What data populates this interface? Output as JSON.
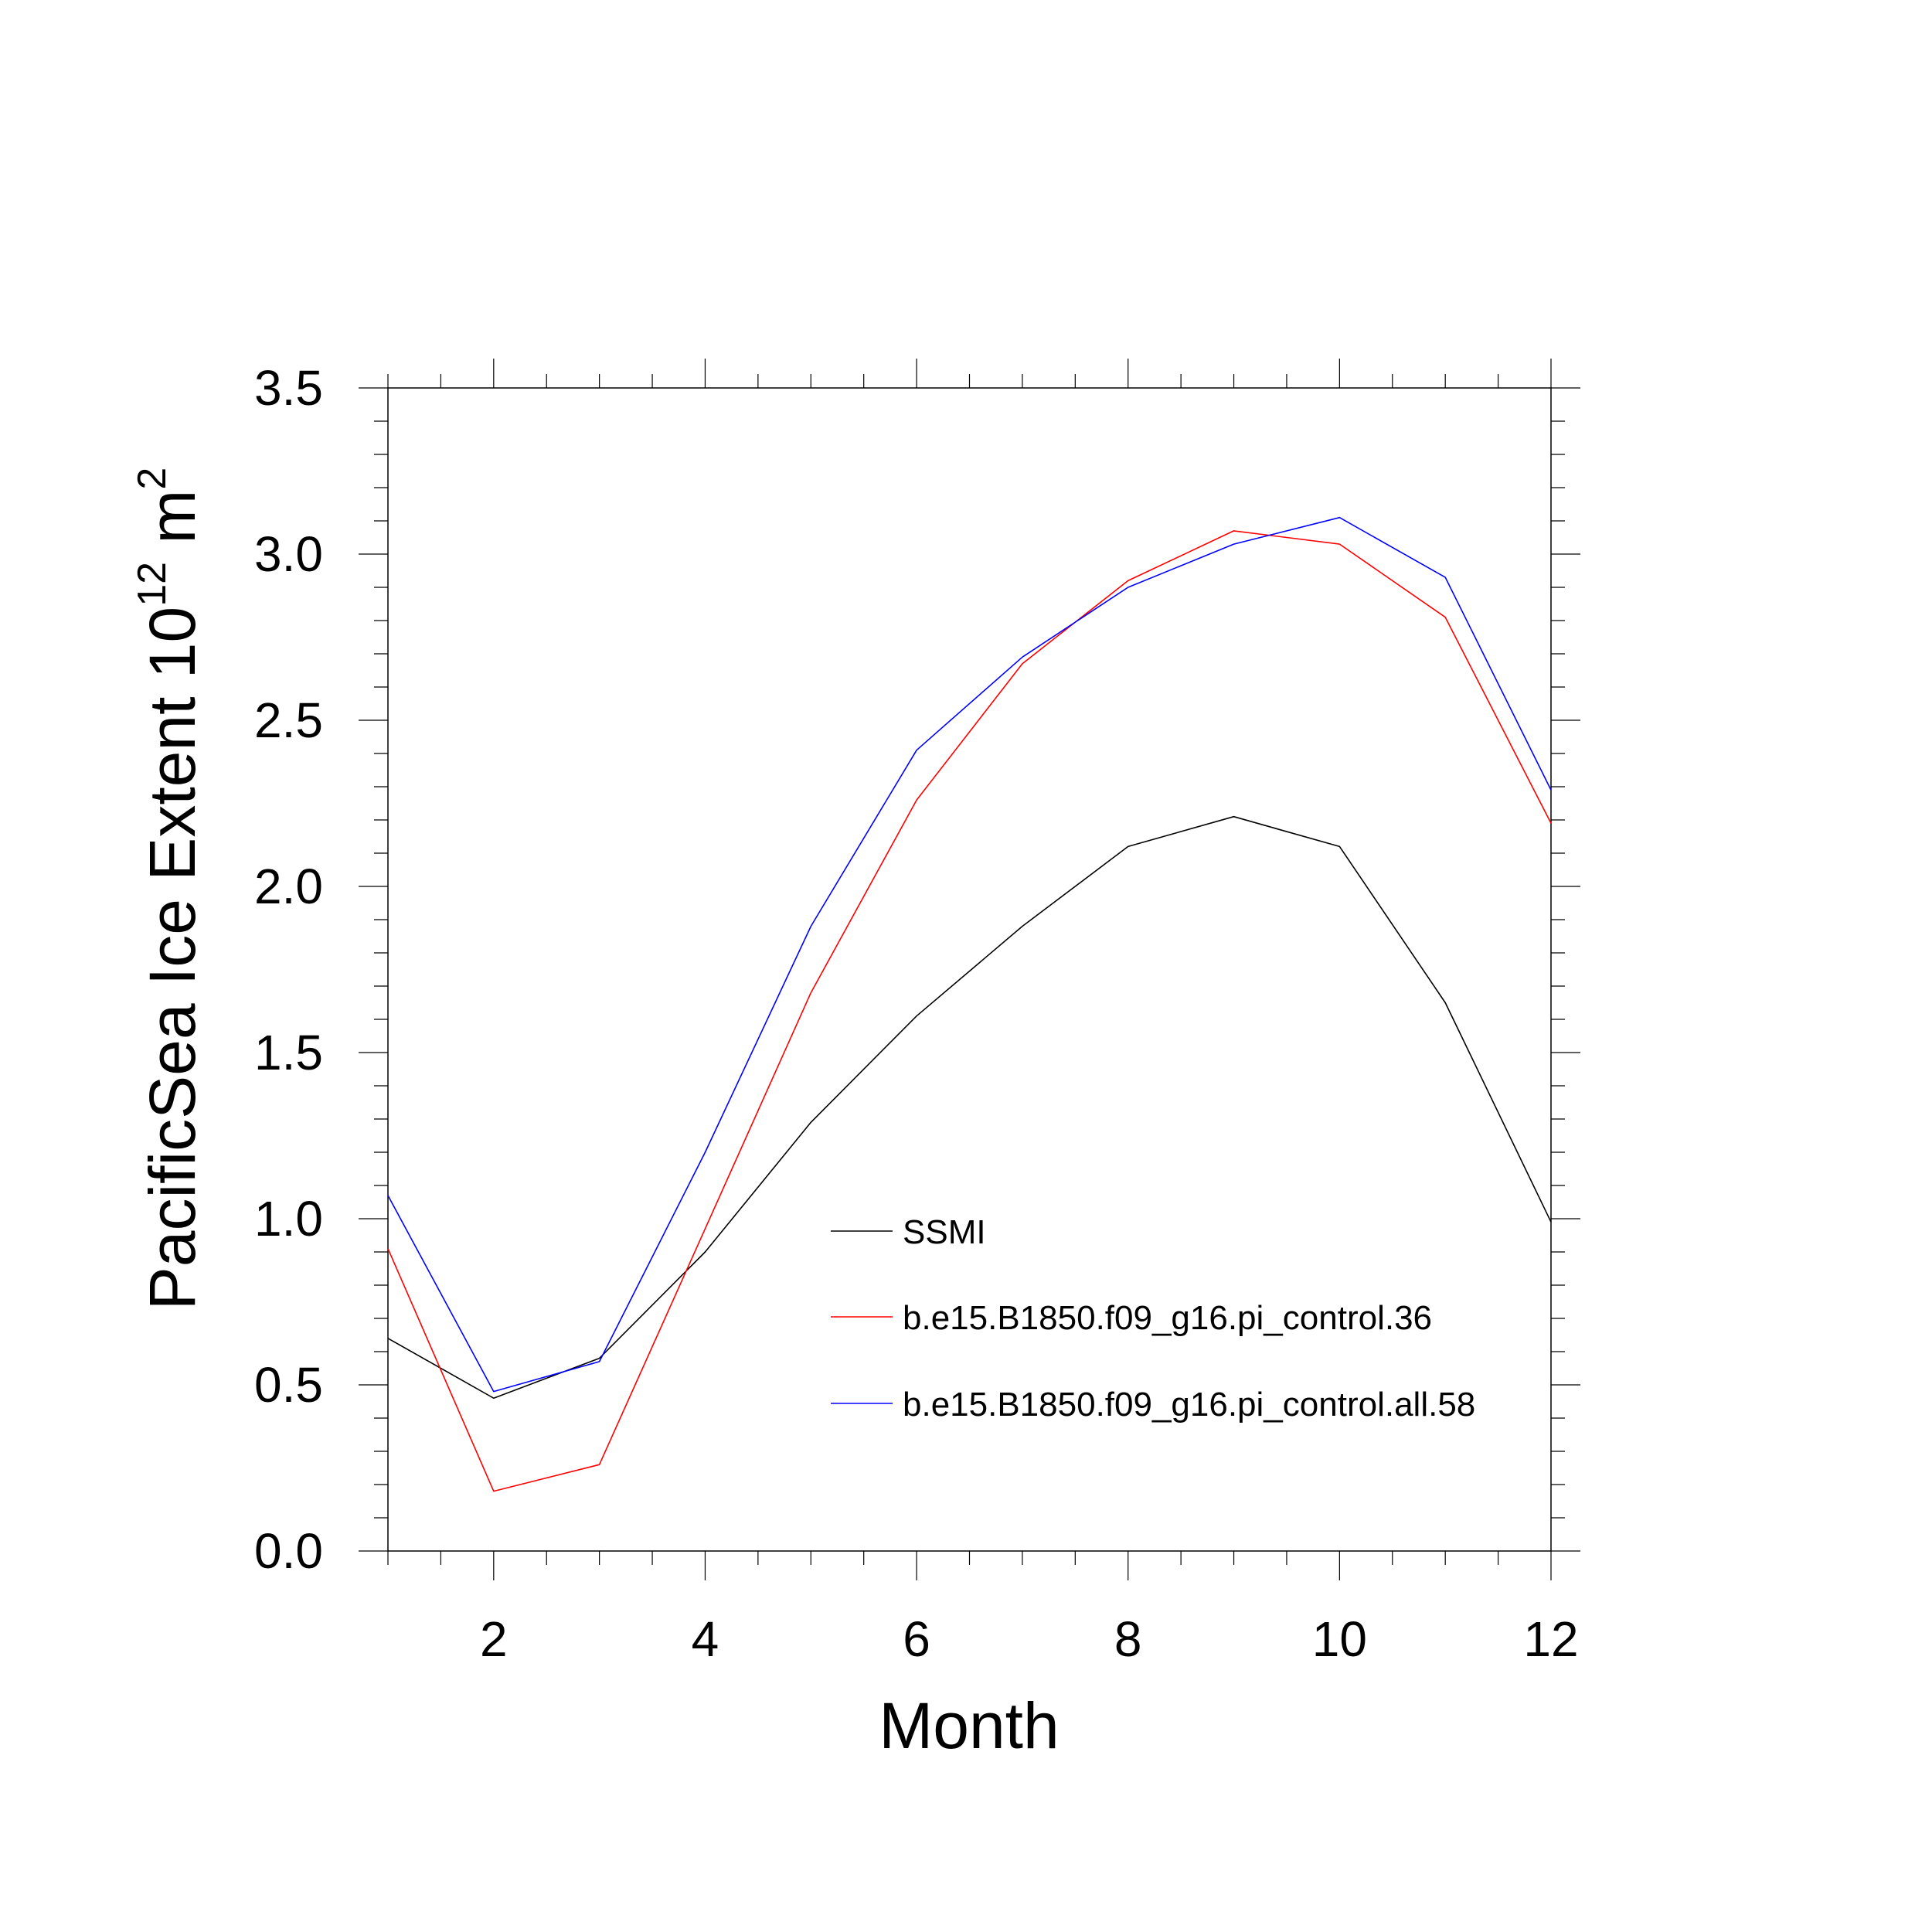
{
  "chart_data": {
    "type": "line",
    "xlabel": "Month",
    "ylabel": {
      "main": "PacificSea Ice Extent 10",
      "exponent": "12",
      "unit": " m",
      "unit_exponent": "2"
    },
    "xlim": [
      1,
      12
    ],
    "ylim": [
      0,
      3.5
    ],
    "x_ticks": [
      2,
      4,
      6,
      8,
      10,
      12
    ],
    "x_tick_labels": [
      "2",
      "4",
      "6",
      "8",
      "10",
      "12"
    ],
    "y_ticks": [
      0,
      0.5,
      1,
      1.5,
      2,
      2.5,
      3,
      3.5
    ],
    "y_tick_labels": [
      "0.0",
      "0.5",
      "1.0",
      "1.5",
      "2.0",
      "2.5",
      "3.0",
      "3.5"
    ],
    "grid": false,
    "legend_position": "lower-right",
    "x": [
      1,
      2,
      3,
      4,
      5,
      6,
      7,
      8,
      9,
      10,
      11,
      12
    ],
    "series": [
      {
        "name": "SSMI",
        "color": "#000000",
        "values": [
          0.64,
          0.46,
          0.58,
          0.9,
          1.29,
          1.61,
          1.88,
          2.12,
          2.21,
          2.12,
          1.65,
          0.99
        ]
      },
      {
        "name": "b.e15.B1850.f09_g16.pi_control.36",
        "color": "#ff0000",
        "values": [
          0.91,
          0.18,
          0.26,
          0.97,
          1.68,
          2.26,
          2.67,
          2.92,
          3.07,
          3.03,
          2.81,
          2.19
        ]
      },
      {
        "name": "b.e15.B1850.f09_g16.pi_control.all.58",
        "color": "#0000ff",
        "values": [
          1.07,
          0.48,
          0.57,
          1.2,
          1.88,
          2.41,
          2.69,
          2.9,
          3.03,
          3.11,
          2.93,
          2.29
        ]
      }
    ]
  }
}
